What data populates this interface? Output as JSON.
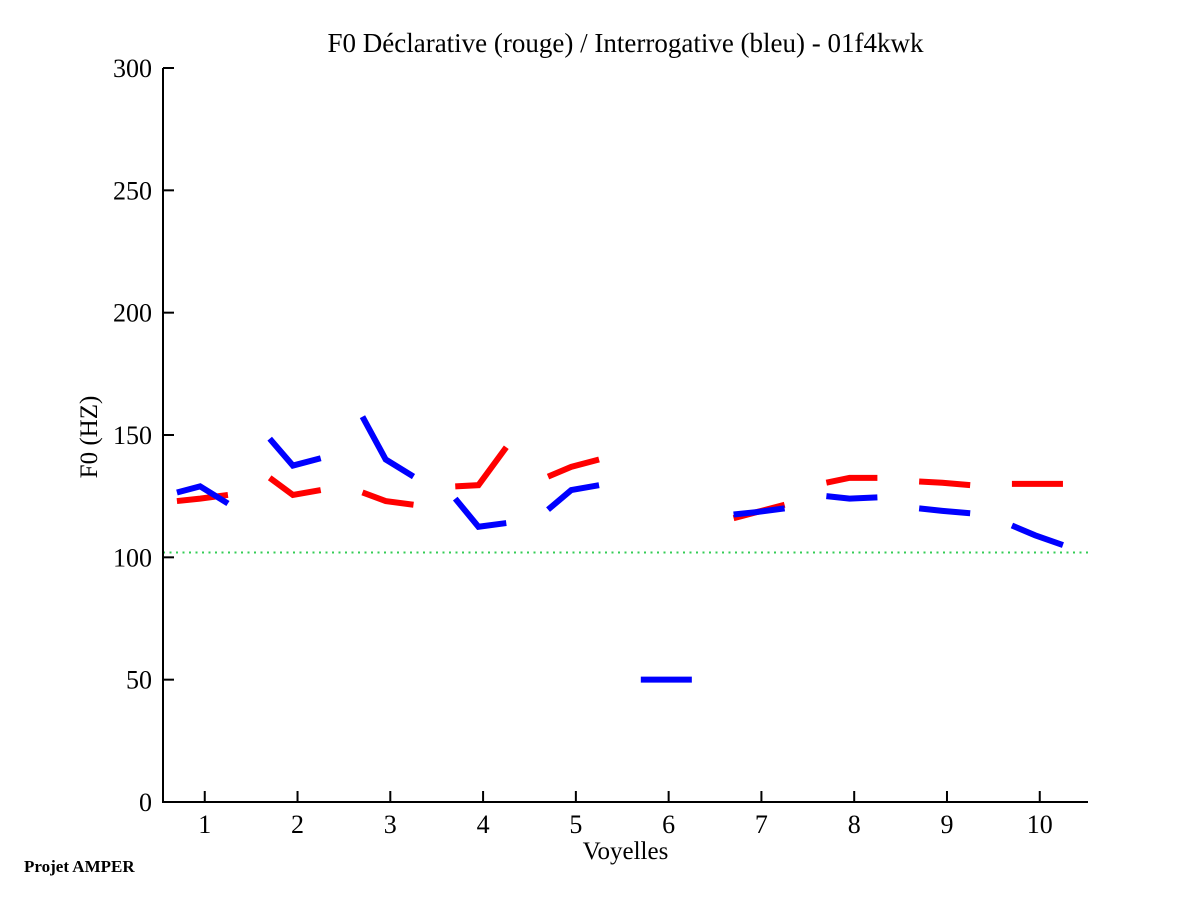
{
  "figure": {
    "background": "#ffffff",
    "footer": "Projet AMPER"
  },
  "chart_data": {
    "type": "line",
    "title": "F0 Déclarative (rouge) / Interrogative (bleu) - 01f4kwk",
    "xlabel": "Voyelles",
    "ylabel": "F0 (HZ)",
    "xlim": [
      0.55,
      10.52
    ],
    "ylim": [
      0,
      300
    ],
    "xticks": [
      1,
      2,
      3,
      4,
      5,
      6,
      7,
      8,
      9,
      10
    ],
    "yticks": [
      0,
      50,
      100,
      150,
      200,
      250,
      300
    ],
    "grid": false,
    "legend": false,
    "axis_color": "#000000",
    "line_width": 6,
    "x_offsets": [
      -0.3,
      -0.05,
      0.25
    ],
    "reference_line": {
      "y": 102,
      "color": "#33cc55",
      "style": "dotted",
      "width": 2
    },
    "series": [
      {
        "name": "Déclarative (rouge)",
        "color": "#ff0000",
        "segments": [
          {
            "vowel": 1,
            "values": [
              123,
              124,
              125.5
            ]
          },
          {
            "vowel": 2,
            "values": [
              132.5,
              125.5,
              127.5
            ]
          },
          {
            "vowel": 3,
            "values": [
              126.5,
              123,
              121.5
            ]
          },
          {
            "vowel": 4,
            "values": [
              129,
              129.5,
              145
            ]
          },
          {
            "vowel": 5,
            "values": [
              133,
              137,
              140
            ]
          },
          {
            "vowel": 7,
            "values": [
              116,
              118.5,
              121.5
            ]
          },
          {
            "vowel": 8,
            "values": [
              130.5,
              132.5,
              132.5
            ]
          },
          {
            "vowel": 9,
            "values": [
              131,
              130.5,
              129.5
            ]
          },
          {
            "vowel": 10,
            "values": [
              130,
              130,
              130
            ]
          }
        ]
      },
      {
        "name": "Interrogative (bleu)",
        "color": "#0000ff",
        "segments": [
          {
            "vowel": 1,
            "values": [
              126.5,
              129,
              122
            ]
          },
          {
            "vowel": 2,
            "values": [
              148.5,
              137.5,
              140.5
            ]
          },
          {
            "vowel": 3,
            "values": [
              157.5,
              140,
              133
            ]
          },
          {
            "vowel": 4,
            "values": [
              124,
              112.5,
              114
            ]
          },
          {
            "vowel": 5,
            "values": [
              119.5,
              127.5,
              129.5
            ]
          },
          {
            "vowel": 6,
            "values": [
              50,
              50,
              50
            ]
          },
          {
            "vowel": 7,
            "values": [
              117.5,
              118.5,
              120
            ]
          },
          {
            "vowel": 8,
            "values": [
              125,
              124,
              124.5
            ]
          },
          {
            "vowel": 9,
            "values": [
              120,
              119,
              118
            ]
          },
          {
            "vowel": 10,
            "values": [
              113,
              109,
              105
            ]
          }
        ]
      }
    ]
  }
}
